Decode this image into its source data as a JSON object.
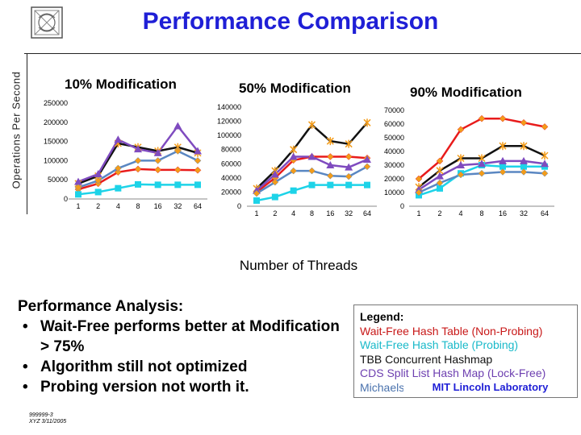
{
  "title": "Performance Comparison",
  "y_axis_label": "Operations Per Second",
  "x_axis_label": "Number of Threads",
  "colors": {
    "title": "#1f1fd6",
    "wait_free_non_probing": "#e81b1b",
    "wait_free_probing": "#1dd3e8",
    "tbb": "#111111",
    "cds": "#7f4bbf",
    "michaels": "#5a87c2",
    "marker_orange": "#f39c1a"
  },
  "chart_data": [
    {
      "type": "line",
      "title": "10% Modification",
      "categories": [
        "1",
        "2",
        "4",
        "8",
        "16",
        "32",
        "64"
      ],
      "y_ticks": [
        "0",
        "50000",
        "100000",
        "150000",
        "200000",
        "250000"
      ],
      "ylim": [
        0,
        250000
      ],
      "series": [
        {
          "name": "Wait-Free Hash Table (Non-Probing)",
          "values": [
            25000,
            40000,
            70000,
            78000,
            76000,
            76000,
            75000
          ]
        },
        {
          "name": "Wait-Free Hash Table (Probing)",
          "values": [
            12000,
            18000,
            28000,
            38000,
            37000,
            37000,
            37000
          ]
        },
        {
          "name": "TBB Concurrent Hashmap",
          "values": [
            40000,
            60000,
            145000,
            135000,
            125000,
            135000,
            120000
          ]
        },
        {
          "name": "CDS Split List Hash Map (Lock-Free)",
          "values": [
            45000,
            65000,
            155000,
            130000,
            120000,
            190000,
            125000
          ]
        },
        {
          "name": "Michaels Lock-Free Hash Map",
          "values": [
            30000,
            48000,
            80000,
            100000,
            100000,
            125000,
            100000
          ]
        }
      ]
    },
    {
      "type": "line",
      "title": "50% Modification",
      "categories": [
        "1",
        "2",
        "4",
        "8",
        "16",
        "32",
        "64"
      ],
      "y_ticks": [
        "0",
        "20000",
        "40000",
        "60000",
        "80000",
        "100000",
        "120000",
        "140000"
      ],
      "ylim": [
        0,
        140000
      ],
      "series": [
        {
          "name": "Wait-Free Hash Table (Non-Probing)",
          "values": [
            20000,
            40000,
            65000,
            70000,
            70000,
            70000,
            68000
          ]
        },
        {
          "name": "Wait-Free Hash Table (Probing)",
          "values": [
            8000,
            13000,
            22000,
            30000,
            30000,
            30000,
            30000
          ]
        },
        {
          "name": "TBB Concurrent Hashmap",
          "values": [
            25000,
            50000,
            80000,
            115000,
            92000,
            88000,
            118000
          ]
        },
        {
          "name": "CDS Split List Hash Map (Lock-Free)",
          "values": [
            22000,
            45000,
            70000,
            70000,
            58000,
            55000,
            66000
          ]
        },
        {
          "name": "Michaels Lock-Free Hash Map",
          "values": [
            18000,
            34000,
            50000,
            50000,
            43000,
            42000,
            56000
          ]
        }
      ]
    },
    {
      "type": "line",
      "title": "90% Modification",
      "categories": [
        "1",
        "2",
        "4",
        "8",
        "16",
        "32",
        "64"
      ],
      "y_ticks": [
        "0",
        "10000",
        "20000",
        "30000",
        "40000",
        "50000",
        "60000",
        "70000"
      ],
      "ylim": [
        0,
        70000
      ],
      "series": [
        {
          "name": "Wait-Free Hash Table (Non-Probing)",
          "values": [
            20000,
            33000,
            56000,
            64000,
            64000,
            61000,
            58000
          ]
        },
        {
          "name": "Wait-Free Hash Table (Probing)",
          "values": [
            8000,
            13000,
            24000,
            30000,
            29000,
            29000,
            29000
          ]
        },
        {
          "name": "TBB Concurrent Hashmap",
          "values": [
            14000,
            26000,
            35000,
            35000,
            44000,
            44000,
            37000
          ]
        },
        {
          "name": "CDS Split List Hash Map (Lock-Free)",
          "values": [
            12000,
            22000,
            30000,
            31000,
            33000,
            33000,
            31000
          ]
        },
        {
          "name": "Michaels Lock-Free Hash Map",
          "values": [
            10000,
            17000,
            23000,
            24000,
            25000,
            25000,
            24000
          ]
        }
      ]
    }
  ],
  "analysis": {
    "heading": "Performance Analysis:",
    "bullets": [
      "Wait-Free performs better at Modification > 75%",
      "Algorithm still not optimized",
      "Probing version not worth it."
    ],
    "bullet_glyph": "•"
  },
  "legend": {
    "title": "Legend:",
    "items": [
      {
        "label": "Wait-Free Hash Table (Non-Probing)",
        "color": "#c81818"
      },
      {
        "label": "Wait-Free Hash Table (Probing)",
        "color": "#19b9c9"
      },
      {
        "label": "TBB Concurrent Hashmap",
        "color": "#111111"
      },
      {
        "label": "CDS Split List Hash Map (Lock-Free)",
        "color": "#6d3fb0"
      },
      {
        "label": "Michaels Lock-Free Hash Map",
        "color": "#4a72ad"
      }
    ]
  },
  "footer": "MIT Lincoln Laboratory",
  "small_note": [
    "999999-3",
    "XYZ 3/11/2005"
  ]
}
